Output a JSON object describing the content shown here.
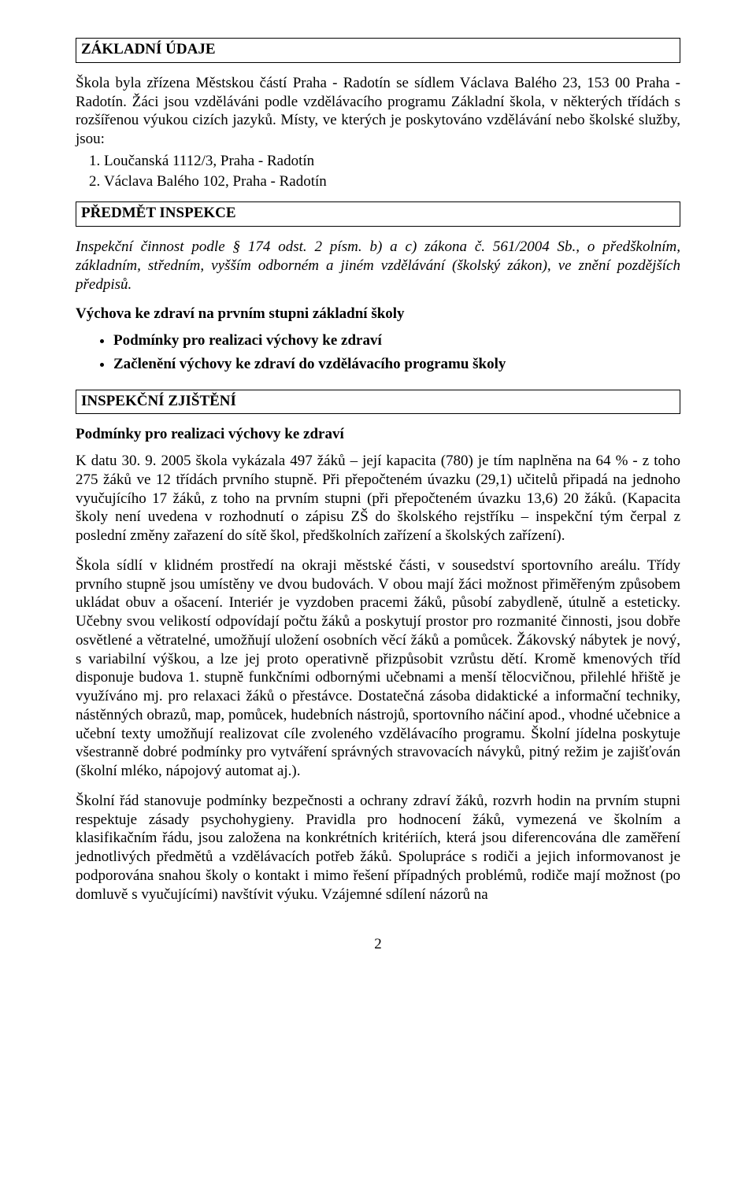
{
  "colors": {
    "text": "#000000",
    "background": "#ffffff",
    "border": "#000000"
  },
  "typography": {
    "font_family": "Times New Roman",
    "body_size_pt": 14,
    "heading_weight": "bold"
  },
  "sections": {
    "zakladni_udaje": {
      "title": "ZÁKLADNÍ ÚDAJE",
      "body": "Škola byla zřízena Městskou částí Praha - Radotín se sídlem Václava Balého 23, 153 00 Praha - Radotín. Žáci jsou vzděláváni podle vzdělávacího programu Základní škola, v některých třídách s rozšířenou výukou cizích jazyků. Místy, ve kterých je poskytováno vzdělávání nebo školské služby, jsou:",
      "list": [
        "Loučanská 1112/3, Praha - Radotín",
        "Václava Balého 102, Praha - Radotín"
      ]
    },
    "predmet_inspekce": {
      "title": "PŘEDMĚT  INSPEKCE",
      "body_pre": "Inspekční činnost podle § 174 odst. 2 písm. b) a c) zákona č. 561/2004 Sb., o předškolním, základním, středním, vyšším odborném a jiném vzdělávání (školský zákon), ve znění pozdějších předpisů.",
      "sub_heading": "Výchova ke zdraví na prvním stupni základní školy",
      "bullets": [
        "Podmínky pro realizaci výchovy ke zdraví",
        "Začlenění výchovy ke zdraví do vzdělávacího programu školy"
      ]
    },
    "inspekcni_zjisteni": {
      "title": "INSPEKČNÍ ZJIŠTĚNÍ",
      "sub_heading": "Podmínky pro realizaci výchovy ke zdraví",
      "para1": "K datu 30. 9. 2005 škola vykázala 497 žáků – její kapacita (780) je tím naplněna na 64 % - z toho 275 žáků ve 12 třídách prvního stupně. Při přepočteném úvazku (29,1) učitelů připadá na jednoho vyučujícího 17 žáků, z toho na prvním stupni (při přepočteném úvazku 13,6) 20 žáků. (Kapacita školy není uvedena v rozhodnutí o zápisu ZŠ do školského rejstříku – inspekční tým čerpal z poslední změny zařazení do sítě škol, předškolních zařízení a školských zařízení).",
      "para2": "Škola sídlí v klidném prostředí na okraji městské části, v sousedství sportovního areálu. Třídy prvního stupně jsou umístěny ve dvou budovách. V obou mají žáci možnost přiměřeným způsobem ukládat obuv a ošacení. Interiér je vyzdoben pracemi žáků, působí zabydleně, útulně a esteticky. Učebny svou velikostí odpovídají počtu žáků a poskytují prostor pro rozmanité činnosti, jsou dobře osvětlené a větratelné, umožňují uložení osobních věcí žáků a pomůcek. Žákovský nábytek je nový, s variabilní výškou, a lze jej proto operativně přizpůsobit vzrůstu dětí. Kromě kmenových tříd disponuje budova 1. stupně funkčními odbornými učebnami a menší tělocvičnou, přilehlé hřiště je využíváno mj. pro relaxaci žáků o přestávce. Dostatečná zásoba didaktické a informační techniky, nástěnných obrazů, map, pomůcek, hudebních nástrojů, sportovního náčiní apod., vhodné učebnice a učební texty umožňují realizovat cíle zvoleného vzdělávacího programu. Školní jídelna poskytuje všestranně dobré podmínky pro vytváření správných stravovacích návyků, pitný režim je zajišťován (školní mléko, nápojový automat aj.).",
      "para3": "Školní řád stanovuje podmínky bezpečnosti a ochrany zdraví žáků, rozvrh hodin na prvním stupni respektuje zásady psychohygieny. Pravidla pro hodnocení žáků, vymezená ve školním a klasifikačním řádu, jsou založena na konkrétních kritériích, která jsou diferencována dle zaměření jednotlivých předmětů a vzdělávacích potřeb žáků. Spolupráce s rodiči a jejich informovanost je podporována snahou školy o kontakt i mimo řešení případných problémů, rodiče mají možnost (po domluvě s vyučujícími) navštívit výuku. Vzájemné sdílení názorů na"
    }
  },
  "page_number": "2"
}
